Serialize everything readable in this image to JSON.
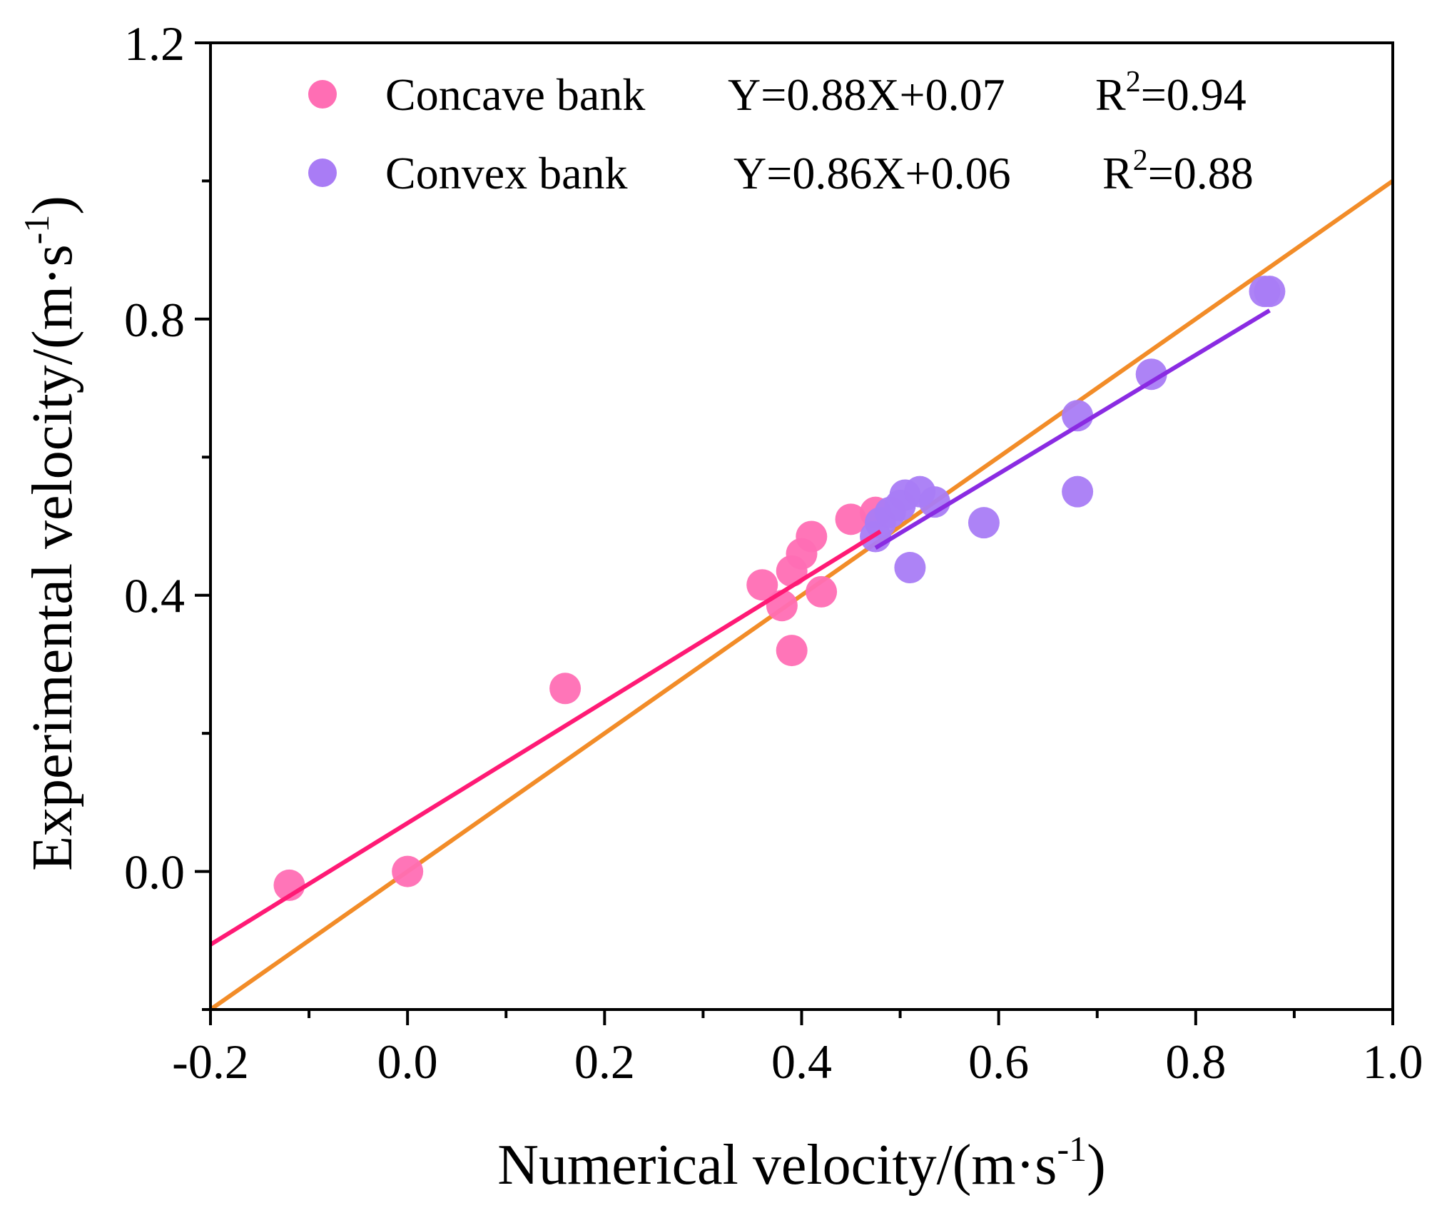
{
  "chart_data": {
    "type": "scatter",
    "xlabel": "Numerical velocity/(m·s",
    "xlabel_sup": "-1",
    "xlabel_end": ")",
    "ylabel": "Experimental velocity/(m·s",
    "ylabel_sup": "-1",
    "ylabel_end": ")",
    "xlim": [
      -0.2,
      1.0
    ],
    "ylim": [
      -0.2,
      1.2
    ],
    "x_ticks": [
      -0.2,
      0.0,
      0.2,
      0.4,
      0.6,
      0.8,
      1.0
    ],
    "x_tick_labels": [
      "-0.2",
      "0.0",
      "0.2",
      "0.4",
      "0.6",
      "0.8",
      "1.0"
    ],
    "x_minor_ticks": [
      -0.1,
      0.1,
      0.3,
      0.5,
      0.7,
      0.9
    ],
    "y_ticks": [
      0.0,
      0.4,
      0.8,
      1.2
    ],
    "y_tick_labels": [
      "0.0",
      "0.4",
      "0.8",
      "1.2"
    ],
    "y_minor_ticks": [
      -0.2,
      0.2,
      0.6,
      1.0
    ],
    "grid": false,
    "legend_position": "top-left",
    "series": [
      {
        "name": "Concave bank",
        "equation": "Y=0.88X+0.07",
        "r2_label": "R",
        "r2_sup": "2",
        "r2_value": "=0.94",
        "color": "#ff6eb4",
        "fit_color": "#ff1a75",
        "fit": {
          "slope": 0.88,
          "intercept": 0.07,
          "x_range": [
            -0.2,
            0.48
          ]
        },
        "points": [
          [
            -0.12,
            -0.02
          ],
          [
            0.0,
            0.0
          ],
          [
            0.16,
            0.265
          ],
          [
            0.36,
            0.415
          ],
          [
            0.38,
            0.385
          ],
          [
            0.39,
            0.435
          ],
          [
            0.4,
            0.46
          ],
          [
            0.41,
            0.485
          ],
          [
            0.42,
            0.405
          ],
          [
            0.39,
            0.32
          ],
          [
            0.45,
            0.51
          ],
          [
            0.475,
            0.52
          ]
        ]
      },
      {
        "name": "Convex bank",
        "equation": "Y=0.86X+0.06",
        "r2_label": "R",
        "r2_sup": "2",
        "r2_value": "=0.88",
        "color": "#a97cf5",
        "fit_color": "#8a2be2",
        "fit": {
          "slope": 0.86,
          "intercept": 0.06,
          "x_range": [
            0.475,
            0.875
          ]
        },
        "points": [
          [
            0.475,
            0.485
          ],
          [
            0.48,
            0.505
          ],
          [
            0.49,
            0.52
          ],
          [
            0.5,
            0.53
          ],
          [
            0.505,
            0.545
          ],
          [
            0.51,
            0.44
          ],
          [
            0.52,
            0.55
          ],
          [
            0.535,
            0.535
          ],
          [
            0.585,
            0.505
          ],
          [
            0.68,
            0.55
          ],
          [
            0.68,
            0.66
          ],
          [
            0.755,
            0.72
          ],
          [
            0.87,
            0.84
          ],
          [
            0.875,
            0.84
          ]
        ]
      }
    ],
    "reference_line": {
      "name": "Y=X",
      "color": "#f28c28",
      "x_range": [
        -0.2,
        1.0
      ]
    }
  }
}
